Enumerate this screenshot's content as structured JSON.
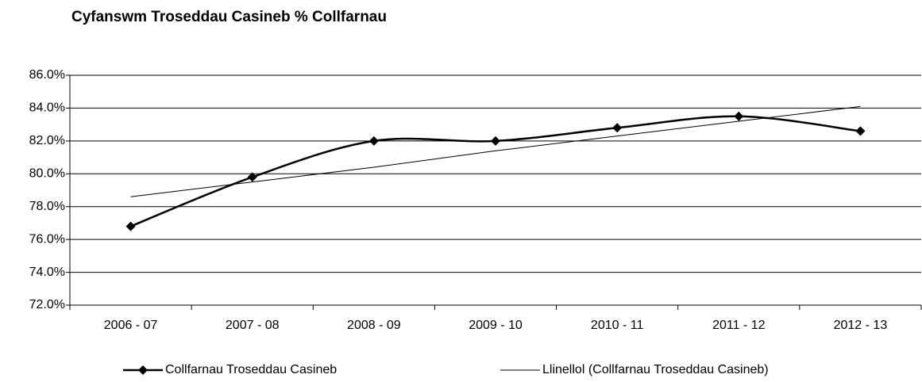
{
  "chart_data": {
    "type": "line",
    "title": "Cyfanswm Troseddau Casineb % Collfarnau",
    "categories": [
      "2006 - 07",
      "2007 - 08",
      "2008 - 09",
      "2009 - 10",
      "2010 - 11",
      "2011 - 12",
      "2012 - 13"
    ],
    "series": [
      {
        "name": "Collfarnau Troseddau Casineb",
        "color": "#000000",
        "values": [
          76.8,
          79.8,
          82.0,
          82.0,
          82.8,
          83.5,
          82.6
        ]
      },
      {
        "name": "Llinellol (Collfarnau Troseddau Casineb)",
        "color": "#000000",
        "values": [
          78.6,
          79.5,
          80.4,
          81.4,
          82.3,
          83.2,
          84.1
        ]
      }
    ],
    "ylim": [
      72,
      86
    ],
    "yticks": [
      {
        "value": 72,
        "label": "72.0%"
      },
      {
        "value": 74,
        "label": "74.0%"
      },
      {
        "value": 76,
        "label": "76.0%"
      },
      {
        "value": 78,
        "label": "78.0%"
      },
      {
        "value": 80,
        "label": "80.0%"
      },
      {
        "value": 82,
        "label": "82.0%"
      },
      {
        "value": 84,
        "label": "84.0%"
      },
      {
        "value": 86,
        "label": "86.0%"
      }
    ],
    "grid": true,
    "legend": "bottom"
  }
}
